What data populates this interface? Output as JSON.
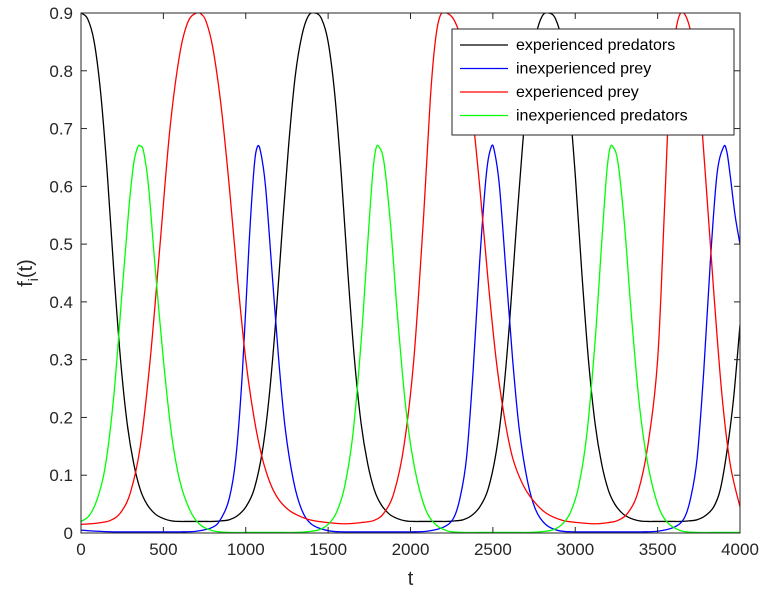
{
  "chart_data": {
    "type": "line",
    "title": "",
    "xlabel": "t",
    "ylabel_main": "f",
    "ylabel_sub": "i",
    "ylabel_tail": "(t)",
    "xlim": [
      0,
      4000
    ],
    "ylim": [
      0,
      0.9
    ],
    "xticks": [
      0,
      500,
      1000,
      1500,
      2000,
      2500,
      3000,
      3500,
      4000
    ],
    "yticks": [
      0,
      0.1,
      0.2,
      0.3,
      0.4,
      0.5,
      0.6,
      0.7,
      0.8,
      0.9
    ],
    "xtick_labels": [
      "0",
      "500",
      "1000",
      "1500",
      "2000",
      "2500",
      "3000",
      "3500",
      "4000"
    ],
    "ytick_labels": [
      "0",
      "0.1",
      "0.2",
      "0.3",
      "0.4",
      "0.5",
      "0.6",
      "0.7",
      "0.8",
      "0.9"
    ],
    "grid": false,
    "legend_position": "top-right",
    "series": [
      {
        "name": "experienced predators",
        "color": "#000000",
        "x": [
          0,
          40,
          80,
          120,
          160,
          200,
          240,
          280,
          320,
          360,
          400,
          450,
          500,
          550,
          600,
          650,
          700,
          750,
          800,
          850,
          900,
          950,
          1000,
          1050,
          1100,
          1140,
          1180,
          1220,
          1260,
          1300,
          1340,
          1380,
          1420,
          1460,
          1500,
          1540,
          1580,
          1620,
          1660,
          1700,
          1740,
          1780,
          1820,
          1870,
          1920,
          1970,
          2020,
          2070,
          2120,
          2170,
          2220,
          2270,
          2320,
          2370,
          2420,
          2470,
          2520,
          2560,
          2600,
          2640,
          2680,
          2720,
          2760,
          2800,
          2840,
          2880,
          2920,
          2960,
          3000,
          3040,
          3080,
          3120,
          3160,
          3200,
          3240,
          3290,
          3340,
          3390,
          3440,
          3490,
          3540,
          3590,
          3640,
          3690,
          3740,
          3790,
          3840,
          3880,
          3920,
          3960,
          4000
        ],
        "y": [
          0.9,
          0.89,
          0.85,
          0.76,
          0.62,
          0.45,
          0.3,
          0.19,
          0.12,
          0.075,
          0.05,
          0.033,
          0.025,
          0.021,
          0.02,
          0.02,
          0.02,
          0.02,
          0.02,
          0.021,
          0.023,
          0.03,
          0.045,
          0.075,
          0.14,
          0.23,
          0.36,
          0.52,
          0.67,
          0.79,
          0.86,
          0.895,
          0.9,
          0.89,
          0.85,
          0.76,
          0.62,
          0.45,
          0.3,
          0.19,
          0.12,
          0.075,
          0.05,
          0.033,
          0.025,
          0.021,
          0.02,
          0.02,
          0.02,
          0.02,
          0.02,
          0.021,
          0.023,
          0.03,
          0.045,
          0.075,
          0.14,
          0.23,
          0.36,
          0.52,
          0.67,
          0.79,
          0.86,
          0.895,
          0.9,
          0.89,
          0.85,
          0.76,
          0.62,
          0.45,
          0.3,
          0.19,
          0.12,
          0.075,
          0.05,
          0.033,
          0.025,
          0.021,
          0.02,
          0.02,
          0.02,
          0.02,
          0.02,
          0.021,
          0.023,
          0.03,
          0.045,
          0.075,
          0.14,
          0.23,
          0.36
        ]
      },
      {
        "name": "inexperienced prey",
        "color": "#0000ff",
        "x": [
          0,
          100,
          200,
          300,
          400,
          500,
          600,
          700,
          800,
          850,
          900,
          940,
          980,
          1020,
          1050,
          1070,
          1090,
          1120,
          1160,
          1200,
          1240,
          1290,
          1340,
          1400,
          1500,
          1600,
          1700,
          1800,
          1900,
          2000,
          2100,
          2200,
          2260,
          2300,
          2340,
          2380,
          2420,
          2460,
          2490,
          2510,
          2540,
          2580,
          2620,
          2660,
          2710,
          2760,
          2820,
          2900,
          3000,
          3100,
          3200,
          3300,
          3400,
          3500,
          3600,
          3660,
          3700,
          3740,
          3780,
          3820,
          3860,
          3900,
          3920,
          3940,
          3970,
          4000
        ],
        "y": [
          0.005,
          0.003,
          0.002,
          0.002,
          0.002,
          0.002,
          0.002,
          0.003,
          0.01,
          0.025,
          0.06,
          0.13,
          0.28,
          0.5,
          0.63,
          0.668,
          0.66,
          0.6,
          0.45,
          0.3,
          0.18,
          0.09,
          0.04,
          0.015,
          0.004,
          0.002,
          0.002,
          0.002,
          0.002,
          0.002,
          0.003,
          0.01,
          0.025,
          0.06,
          0.13,
          0.28,
          0.47,
          0.62,
          0.668,
          0.66,
          0.6,
          0.45,
          0.3,
          0.18,
          0.09,
          0.04,
          0.015,
          0.004,
          0.002,
          0.002,
          0.002,
          0.002,
          0.002,
          0.003,
          0.01,
          0.025,
          0.06,
          0.13,
          0.28,
          0.47,
          0.62,
          0.668,
          0.66,
          0.62,
          0.55,
          0.5
        ]
      },
      {
        "name": "experienced prey",
        "color": "#ff0000",
        "x": [
          0,
          60,
          120,
          180,
          240,
          300,
          360,
          420,
          480,
          540,
          600,
          650,
          700,
          730,
          760,
          800,
          850,
          900,
          950,
          1000,
          1050,
          1100,
          1150,
          1200,
          1260,
          1320,
          1400,
          1500,
          1600,
          1700,
          1780,
          1840,
          1900,
          1960,
          2020,
          2080,
          2120,
          2150,
          2180,
          2220,
          2270,
          2320,
          2370,
          2420,
          2470,
          2520,
          2570,
          2620,
          2680,
          2740,
          2820,
          2920,
          3020,
          3120,
          3200,
          3260,
          3320,
          3380,
          3440,
          3500,
          3540,
          3570,
          3600,
          3640,
          3690,
          3740,
          3790,
          3840,
          3890,
          3940,
          4000
        ],
        "y": [
          0.015,
          0.016,
          0.018,
          0.022,
          0.035,
          0.07,
          0.15,
          0.3,
          0.5,
          0.7,
          0.83,
          0.885,
          0.9,
          0.898,
          0.885,
          0.84,
          0.74,
          0.6,
          0.44,
          0.3,
          0.2,
          0.13,
          0.085,
          0.058,
          0.04,
          0.03,
          0.022,
          0.018,
          0.016,
          0.018,
          0.022,
          0.035,
          0.07,
          0.15,
          0.3,
          0.55,
          0.75,
          0.85,
          0.895,
          0.9,
          0.885,
          0.84,
          0.74,
          0.6,
          0.44,
          0.3,
          0.2,
          0.13,
          0.085,
          0.058,
          0.035,
          0.022,
          0.018,
          0.016,
          0.018,
          0.022,
          0.035,
          0.07,
          0.15,
          0.3,
          0.55,
          0.75,
          0.85,
          0.9,
          0.88,
          0.8,
          0.62,
          0.42,
          0.24,
          0.12,
          0.045
        ]
      },
      {
        "name": "inexperienced predators",
        "color": "#00ff00",
        "x": [
          0,
          50,
          100,
          150,
          200,
          250,
          290,
          320,
          345,
          360,
          380,
          410,
          450,
          500,
          550,
          600,
          660,
          720,
          800,
          900,
          1000,
          1100,
          1200,
          1300,
          1400,
          1450,
          1500,
          1550,
          1600,
          1650,
          1700,
          1740,
          1770,
          1790,
          1810,
          1840,
          1880,
          1920,
          1970,
          2020,
          2080,
          2140,
          2220,
          2320,
          2420,
          2520,
          2620,
          2720,
          2820,
          2870,
          2920,
          2970,
          3020,
          3070,
          3120,
          3160,
          3190,
          3210,
          3230,
          3260,
          3300,
          3340,
          3390,
          3440,
          3500,
          3560,
          3640,
          3740,
          3840,
          3940,
          4000
        ],
        "y": [
          0.02,
          0.03,
          0.06,
          0.12,
          0.24,
          0.42,
          0.56,
          0.64,
          0.668,
          0.67,
          0.66,
          0.6,
          0.46,
          0.3,
          0.17,
          0.09,
          0.04,
          0.015,
          0.004,
          0.001,
          0.001,
          0.001,
          0.001,
          0.001,
          0.003,
          0.006,
          0.015,
          0.035,
          0.08,
          0.17,
          0.33,
          0.5,
          0.62,
          0.665,
          0.668,
          0.64,
          0.53,
          0.38,
          0.22,
          0.12,
          0.05,
          0.018,
          0.004,
          0.001,
          0.001,
          0.001,
          0.001,
          0.001,
          0.003,
          0.006,
          0.015,
          0.035,
          0.08,
          0.17,
          0.33,
          0.5,
          0.62,
          0.665,
          0.668,
          0.64,
          0.53,
          0.38,
          0.22,
          0.12,
          0.05,
          0.018,
          0.004,
          0.001,
          0.001,
          0.001,
          0.001
        ]
      }
    ]
  }
}
